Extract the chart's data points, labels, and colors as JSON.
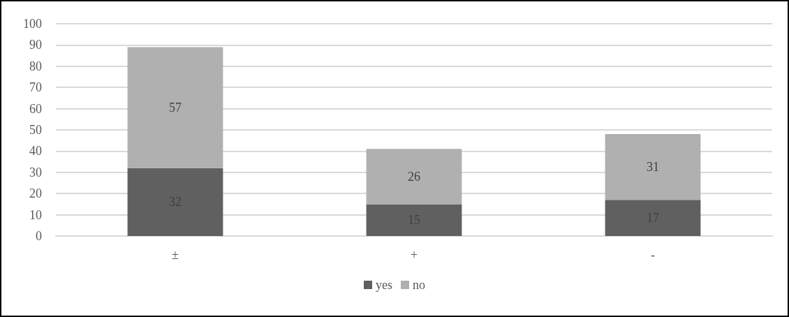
{
  "chart_data": {
    "type": "bar",
    "stacked": true,
    "categories": [
      "±",
      "+",
      "-"
    ],
    "series": [
      {
        "name": "yes",
        "color": "#606060",
        "values": [
          32,
          15,
          17
        ]
      },
      {
        "name": "no",
        "color": "#b0b0b0",
        "values": [
          57,
          26,
          31
        ]
      }
    ],
    "ylim": [
      0,
      100
    ],
    "yticks": [
      0,
      10,
      20,
      30,
      40,
      50,
      60,
      70,
      80,
      90,
      100
    ],
    "grid": "y",
    "legend": "bottom",
    "data_labels": true
  }
}
